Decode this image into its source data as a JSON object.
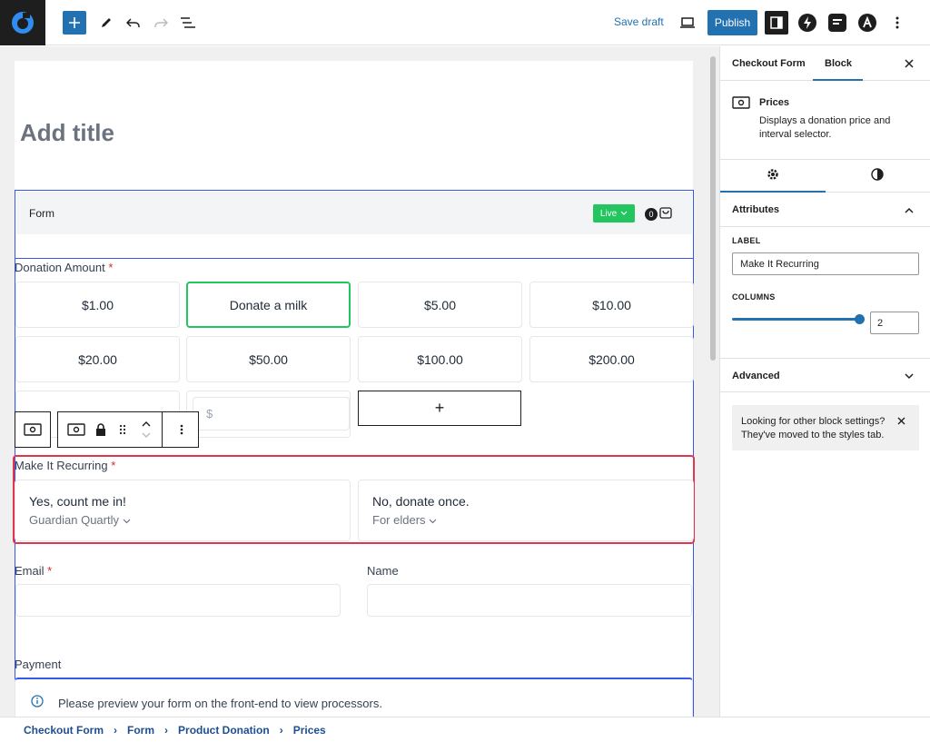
{
  "toolbar": {
    "save_draft_label": "Save draft",
    "publish_label": "Publish",
    "add_icon": "plus",
    "icons": [
      "pencil-icon",
      "undo-icon",
      "redo-icon",
      "list-view-icon",
      "desktop-preview-icon",
      "settings-icon",
      "bolt-icon",
      "stackable-icon",
      "astra-icon",
      "more-options-icon"
    ]
  },
  "editor": {
    "title_placeholder": "Add title",
    "form_header_label": "Form",
    "live_badge": "Live",
    "cart_count": "0",
    "donation_amount_label": "Donation Amount",
    "required_mark": "*",
    "prices": [
      "$1.00",
      "Donate a milk",
      "$5.00",
      "$10.00",
      "$20.00",
      "$50.00",
      "$100.00",
      "$200.00"
    ],
    "selected_price_index": 1,
    "custom_amount_placeholder": "$",
    "add_price_symbol": "+",
    "recurring_label": "Make It Recurring",
    "recurring_options": [
      {
        "title": "Yes, count me in!",
        "subtitle": "Guardian Quartly"
      },
      {
        "title": "No, donate once.",
        "subtitle": "For elders"
      }
    ],
    "email_label": "Email",
    "name_label": "Name",
    "payment_label": "Payment",
    "payment_notice": "Please preview your form on the front-end to view processors."
  },
  "breadcrumb": [
    "Checkout Form",
    "Product Donation",
    "Prices"
  ],
  "breadcrumb_form": "Form",
  "sidebar": {
    "tab_form": "Checkout Form",
    "tab_block": "Block",
    "block_name": "Prices",
    "block_description": "Displays a donation price and interval selector.",
    "attributes_title": "Attributes",
    "label_field_label": "LABEL",
    "label_value": "Make It Recurring",
    "columns_label": "COLUMNS",
    "columns_value": "2",
    "columns_slider_fraction": 1.0,
    "advanced_title": "Advanced",
    "notice_text": "Looking for other block settings? They've moved to the styles tab."
  },
  "colors": {
    "accent": "#2271b1",
    "selection_outline": "#3858e9",
    "selected_price": "#22c55e",
    "live_badge": "#22c55e",
    "highlight_border": "#e0364f",
    "required": "#dc2626"
  }
}
